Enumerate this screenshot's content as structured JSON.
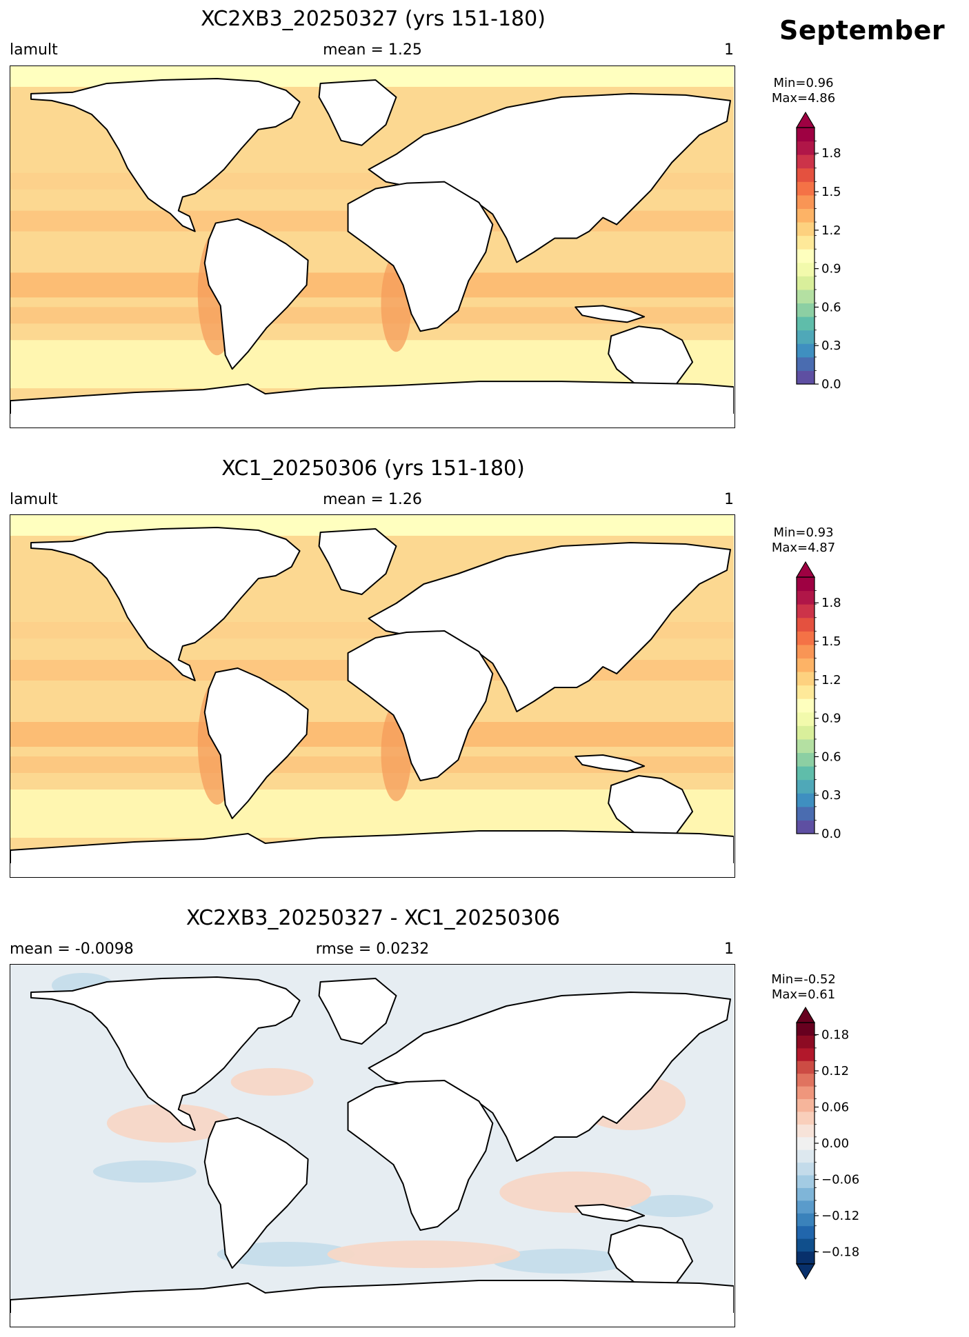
{
  "month": "September",
  "panels": [
    {
      "title": "XC2XB3_20250327 (yrs 151-180)",
      "left_label": "lamult",
      "center_label": "mean = 1.25",
      "right_label": "1",
      "min_text": "Min=0.96",
      "max_text": "Max=4.86",
      "colormap": "RdYlBu_r-spectral",
      "map_field": "lamult",
      "colorbar": {
        "range": [
          0.0,
          2.0
        ],
        "ticks": [
          "0.0",
          "0.3",
          "0.6",
          "0.9",
          "1.2",
          "1.5",
          "1.8"
        ],
        "tick_values": [
          0.0,
          0.3,
          0.6,
          0.9,
          1.2,
          1.5,
          1.8
        ],
        "extend": "max",
        "colors": [
          "#5e4fa2",
          "#4a6cb0",
          "#3f8fc0",
          "#4fa8b8",
          "#5fbdaa",
          "#8ccfa3",
          "#b4e0a2",
          "#d9ef9b",
          "#f2faac",
          "#feffbe",
          "#fee999",
          "#fdd17f",
          "#fdb366",
          "#f99555",
          "#f47246",
          "#e4513f",
          "#cc3349",
          "#b01648",
          "#9e0142"
        ],
        "extend_color": "#9e0142"
      }
    },
    {
      "title": "XC1_20250306 (yrs 151-180)",
      "left_label": "lamult",
      "center_label": "mean = 1.26",
      "right_label": "1",
      "min_text": "Min=0.93",
      "max_text": "Max=4.87",
      "colormap": "RdYlBu_r-spectral",
      "map_field": "lamult",
      "colorbar": {
        "range": [
          0.0,
          2.0
        ],
        "ticks": [
          "0.0",
          "0.3",
          "0.6",
          "0.9",
          "1.2",
          "1.5",
          "1.8"
        ],
        "tick_values": [
          0.0,
          0.3,
          0.6,
          0.9,
          1.2,
          1.5,
          1.8
        ],
        "extend": "max",
        "colors": [
          "#5e4fa2",
          "#4a6cb0",
          "#3f8fc0",
          "#4fa8b8",
          "#5fbdaa",
          "#8ccfa3",
          "#b4e0a2",
          "#d9ef9b",
          "#f2faac",
          "#feffbe",
          "#fee999",
          "#fdd17f",
          "#fdb366",
          "#f99555",
          "#f47246",
          "#e4513f",
          "#cc3349",
          "#b01648",
          "#9e0142"
        ],
        "extend_color": "#9e0142"
      }
    },
    {
      "title": "XC2XB3_20250327 - XC1_20250306",
      "left_label": "mean = -0.0098",
      "center_label": "rmse = 0.0232",
      "right_label": "1",
      "min_text": "Min=-0.52",
      "max_text": "Max=0.61",
      "colormap": "RdBu_r",
      "map_field": "difference",
      "colorbar": {
        "range": [
          -0.2,
          0.2
        ],
        "ticks": [
          "−0.18",
          "−0.12",
          "−0.06",
          "0.00",
          "0.06",
          "0.12",
          "0.18"
        ],
        "tick_values": [
          -0.18,
          -0.12,
          -0.06,
          0.0,
          0.06,
          0.12,
          0.18
        ],
        "extend": "both",
        "colors": [
          "#08306b",
          "#104f8c",
          "#2166ac",
          "#3a82bb",
          "#5a9bcb",
          "#7fb5d8",
          "#a3cbe3",
          "#c3dbea",
          "#dde8ef",
          "#f0f0f0",
          "#f7e3d9",
          "#f9cfbb",
          "#f6b59b",
          "#ef967c",
          "#e0735f",
          "#cc4c44",
          "#b2182b",
          "#8d0b23",
          "#67001f"
        ],
        "extend_low_color": "#08306b",
        "extend_high_color": "#67001f"
      }
    }
  ]
}
